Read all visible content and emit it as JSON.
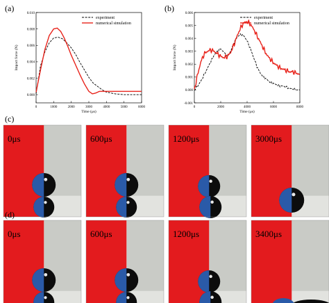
{
  "chart_data": [
    {
      "panel_label": "(a)",
      "type": "line",
      "xlabel": "Time (μs)",
      "ylabel": "Impact force (N)",
      "xlim": [
        0,
        6000
      ],
      "ylim": [
        -0.001,
        0.01
      ],
      "x_ticks": [
        "0",
        "1000",
        "2000",
        "3000",
        "4000",
        "5000",
        "6000"
      ],
      "y_ticks": [
        "0.000",
        "0.002",
        "0.004",
        "0.006",
        "0.008",
        "0.010"
      ],
      "legend_position": "top-right",
      "series": [
        {
          "name": "experiment",
          "style": "dashed",
          "color": "#000000",
          "x": [
            0,
            250,
            500,
            750,
            1000,
            1250,
            1500,
            1750,
            2000,
            2250,
            2500,
            2750,
            3000,
            3250,
            3500,
            3750,
            4000,
            4500,
            5000,
            5500,
            6000
          ],
          "y": [
            0.0001,
            0.0035,
            0.0052,
            0.0063,
            0.0069,
            0.007,
            0.0068,
            0.0063,
            0.0057,
            0.0049,
            0.0039,
            0.003,
            0.0021,
            0.0014,
            0.001,
            0.0006,
            0.0003,
            0.0001,
            0.0,
            0.0,
            0.0
          ]
        },
        {
          "name": "numerical simulation",
          "style": "solid",
          "color": "#e8231b",
          "x": [
            0,
            250,
            500,
            750,
            1000,
            1200,
            1400,
            1600,
            1800,
            2000,
            2250,
            2500,
            2750,
            3000,
            3200,
            3400,
            3600,
            3800,
            4000,
            5000,
            6000
          ],
          "y": [
            0.0003,
            0.003,
            0.0055,
            0.0072,
            0.008,
            0.0081,
            0.0077,
            0.0069,
            0.0059,
            0.0048,
            0.0036,
            0.0024,
            0.0013,
            0.0004,
            0.0001,
            0.0002,
            0.0004,
            0.0004,
            0.0004,
            0.0004,
            0.0004
          ]
        }
      ]
    },
    {
      "panel_label": "(b)",
      "type": "line",
      "xlabel": "Time (μs)",
      "ylabel": "Impact force (N)",
      "xlim": [
        0,
        8000
      ],
      "ylim": [
        -0.001,
        0.006
      ],
      "x_ticks": [
        "0",
        "2000",
        "4000",
        "6000",
        "8000"
      ],
      "y_ticks": [
        "-0.001",
        "0.000",
        "0.001",
        "0.002",
        "0.003",
        "0.004",
        "0.005",
        "0.006"
      ],
      "legend_position": "top-right",
      "series": [
        {
          "name": "experiment",
          "style": "dashed",
          "color": "#000000",
          "x": [
            0,
            250,
            500,
            750,
            1000,
            1250,
            1500,
            1750,
            2000,
            2250,
            2500,
            2750,
            3000,
            3250,
            3500,
            3750,
            4000,
            4250,
            4500,
            4750,
            5000,
            5250,
            5500,
            5750,
            6000,
            6250,
            6500,
            6750,
            7000,
            7250,
            7500,
            7750,
            8000
          ],
          "y": [
            0.0,
            0.0003,
            0.0007,
            0.0012,
            0.0017,
            0.0022,
            0.0027,
            0.003,
            0.0032,
            0.0029,
            0.0026,
            0.003,
            0.0036,
            0.0041,
            0.0043,
            0.0042,
            0.0038,
            0.0032,
            0.0025,
            0.0018,
            0.0013,
            0.001,
            0.0008,
            0.0006,
            0.0005,
            0.0004,
            0.0003,
            0.0003,
            0.0002,
            0.0001,
            0.0001,
            0.0,
            0.0
          ]
        },
        {
          "name": "numerical simulation",
          "style": "solid",
          "color": "#e8231b",
          "x": [
            0,
            250,
            500,
            750,
            1000,
            1250,
            1500,
            1750,
            2000,
            2250,
            2500,
            2750,
            3000,
            3250,
            3500,
            3750,
            4000,
            4250,
            4500,
            4750,
            5000,
            5250,
            5500,
            5750,
            6000,
            6250,
            6500,
            6750,
            7000,
            7250,
            7500,
            7750,
            8000
          ],
          "y": [
            0.0,
            0.0012,
            0.0022,
            0.0028,
            0.003,
            0.0031,
            0.003,
            0.0028,
            0.0026,
            0.0025,
            0.0026,
            0.0029,
            0.0035,
            0.0042,
            0.0048,
            0.0052,
            0.0053,
            0.0051,
            0.0047,
            0.0042,
            0.0037,
            0.0032,
            0.0027,
            0.0024,
            0.0021,
            0.0019,
            0.0017,
            0.0016,
            0.0015,
            0.0014,
            0.0014,
            0.0013,
            0.0012
          ]
        }
      ]
    }
  ],
  "photo_rows": [
    {
      "label": "(c)",
      "frames": [
        "0μs",
        "600μs",
        "1200μs",
        "3000μs"
      ]
    },
    {
      "label": "(d)",
      "frames": [
        "0μs",
        "600μs",
        "1200μs",
        "3400μs"
      ]
    }
  ],
  "colors": {
    "red_wall": "#e31b1e",
    "droplet_blue": "#2a5aa8",
    "sim_red": "#e8231b"
  }
}
